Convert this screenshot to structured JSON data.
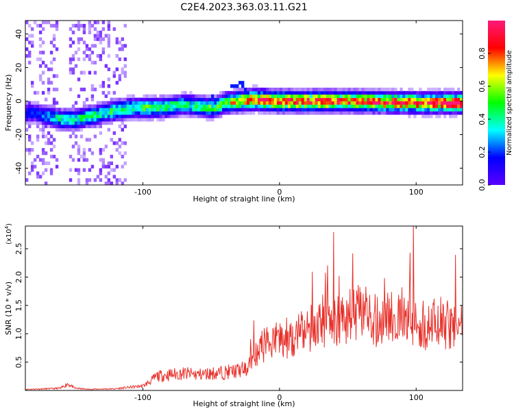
{
  "title": "C2E4.2023.363.03.11.G21",
  "chart_data": [
    {
      "type": "heatmap",
      "xlabel": "Height of straight line (km)",
      "ylabel": "Frequency (Hz)",
      "xlim": [
        -186,
        134
      ],
      "ylim": [
        -50,
        48
      ],
      "x_ticks": [
        -100,
        0,
        100
      ],
      "y_ticks": [
        -40,
        -20,
        0,
        20,
        40
      ],
      "colorbar": {
        "label": "Normalized spectral amplitude",
        "range": [
          0.0,
          1.0
        ],
        "ticks": [
          0.0,
          0.2,
          0.4,
          0.6,
          0.8
        ],
        "colormap": [
          "#ffffff",
          "#5b00ff",
          "#0000ff",
          "#00ffff",
          "#00ff00",
          "#ffff00",
          "#ff0000",
          "#ff1a7a"
        ]
      },
      "ridge": {
        "description_points_x": [
          -180,
          -160,
          -150,
          -130,
          -110,
          -90,
          -70,
          -50,
          -40,
          -30,
          -20,
          0,
          50,
          100,
          134
        ],
        "center_freq": [
          -8,
          -12,
          -12,
          -8,
          -5,
          -5,
          -3,
          -5,
          -2,
          -1,
          0,
          -1,
          -1,
          -2,
          -2
        ],
        "peak_amplitude": [
          0.3,
          0.5,
          0.5,
          0.5,
          0.55,
          0.55,
          0.5,
          0.55,
          0.6,
          0.75,
          0.85,
          0.9,
          0.85,
          0.9,
          0.95
        ]
      }
    },
    {
      "type": "line",
      "xlabel": "Height of straight line (km)",
      "ylabel": "SNR (10 * v/v)",
      "y_multiplier": "(x10",
      "y_multiplier_exp": "4",
      "y_multiplier_close": ")",
      "xlim": [
        -186,
        134
      ],
      "ylim": [
        0,
        2.9
      ],
      "x_ticks": [
        -100,
        0,
        100
      ],
      "y_ticks": [
        0.5,
        1.0,
        1.5,
        2.0,
        2.5
      ],
      "y_tick_labels": [
        "0.5",
        "1.0",
        "1.5",
        "2.0",
        "2.5"
      ],
      "series": [
        {
          "color": "#e8302a",
          "x": [
            -186,
            -170,
            -160,
            -155,
            -150,
            -140,
            -120,
            -100,
            -95,
            -90,
            -80,
            -70,
            -60,
            -50,
            -40,
            -30,
            -25,
            -20,
            -15,
            -10,
            0,
            10,
            20,
            30,
            35,
            40,
            50,
            60,
            70,
            80,
            90,
            100,
            110,
            120,
            125,
            130,
            134
          ],
          "y": [
            0.02,
            0.03,
            0.04,
            0.12,
            0.04,
            0.02,
            0.03,
            0.08,
            0.15,
            0.25,
            0.28,
            0.3,
            0.28,
            0.3,
            0.32,
            0.35,
            0.38,
            0.55,
            0.7,
            0.85,
            0.9,
            0.95,
            1.05,
            1.2,
            1.3,
            1.25,
            1.3,
            1.35,
            1.25,
            1.3,
            1.25,
            1.2,
            1.15,
            1.2,
            1.1,
            1.15,
            1.1
          ]
        }
      ]
    }
  ]
}
